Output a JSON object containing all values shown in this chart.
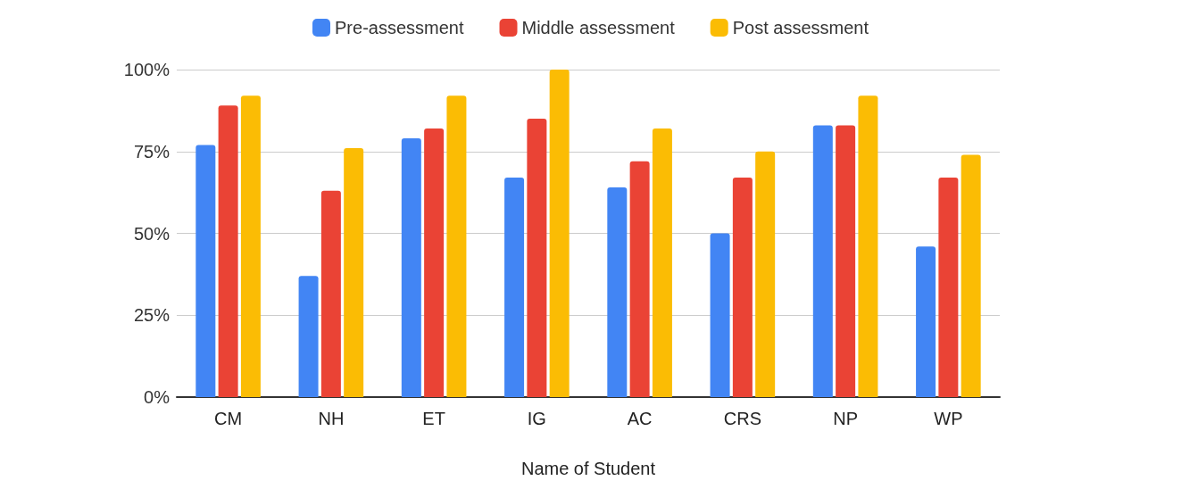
{
  "chart_data": {
    "type": "bar",
    "xlabel": "Name of Student",
    "categories": [
      "CM",
      "NH",
      "ET",
      "IG",
      "AC",
      "CRS",
      "NP",
      "WP"
    ],
    "series": [
      {
        "name": "Pre-assessment",
        "color": "#4285f4",
        "values": [
          77,
          37,
          79,
          67,
          64,
          50,
          83,
          46
        ]
      },
      {
        "name": "Middle assessment",
        "color": "#ea4335",
        "values": [
          89,
          63,
          82,
          85,
          72,
          67,
          83,
          67
        ]
      },
      {
        "name": "Post assessment",
        "color": "#fbbc04",
        "values": [
          92,
          76,
          92,
          100,
          82,
          75,
          92,
          74
        ]
      }
    ],
    "ylim": [
      0,
      100
    ],
    "yticks": [
      {
        "value": 0,
        "label": "0%"
      },
      {
        "value": 25,
        "label": "25%"
      },
      {
        "value": 50,
        "label": "50%"
      },
      {
        "value": 75,
        "label": "75%"
      },
      {
        "value": 100,
        "label": "100%"
      }
    ],
    "grid": "y",
    "legend": "top"
  }
}
